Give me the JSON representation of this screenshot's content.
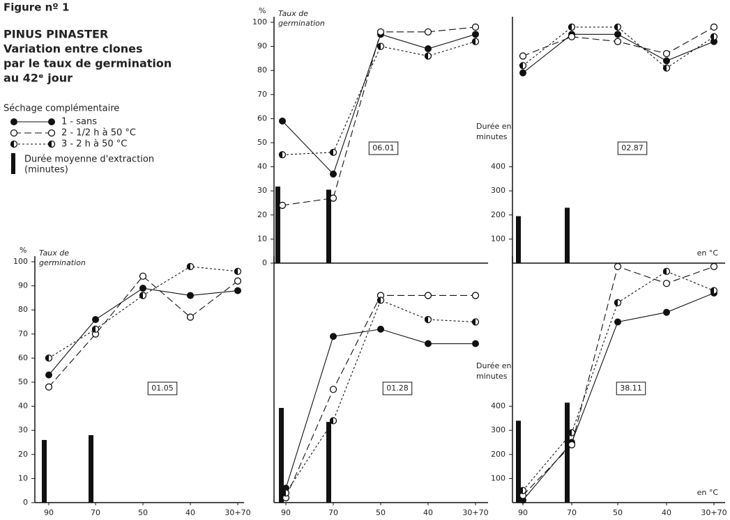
{
  "figure": {
    "title": "Figure nº 1",
    "subtitle": [
      "PINUS PINASTER",
      "Variation entre clones",
      "par le taux de germination",
      "au 42ᵉ jour"
    ]
  },
  "legend": {
    "title": "Séchage complémentaire",
    "entries": [
      "1 - sans",
      "2 - 1/2 h à 50 °C",
      "3 - 2 h à 50 °C"
    ],
    "bar_label": [
      "Durée moyenne d'extraction",
      "(minutes)"
    ]
  },
  "chart_data": [
    {
      "type": "line",
      "label": "06.01",
      "categories": [
        null,
        null,
        null,
        null,
        null
      ],
      "ylim": [
        0,
        100
      ],
      "yticks": [
        0,
        10,
        20,
        30,
        40,
        50,
        60,
        70,
        80,
        90,
        100
      ],
      "yunit": "%",
      "ylabel": [
        "Taux de",
        "germination"
      ],
      "y2lim": [
        0,
        1000
      ],
      "series": [
        {
          "marker": "filled",
          "values": [
            59,
            37,
            95,
            89,
            95
          ]
        },
        {
          "marker": "open",
          "values": [
            24,
            27,
            96,
            96,
            98
          ]
        },
        {
          "marker": "half",
          "values": [
            45,
            46,
            90,
            86,
            92
          ]
        }
      ],
      "bars": [
        318,
        305
      ]
    },
    {
      "type": "line",
      "label": "02.87",
      "categories": [
        null,
        null,
        null,
        null,
        null
      ],
      "ylim": [
        0,
        100
      ],
      "y2lim": [
        0,
        1000
      ],
      "y2ticks": [
        100,
        200,
        300,
        400
      ],
      "y2label": [
        "Durée en",
        "minutes"
      ],
      "xlabel": "en °C",
      "series": [
        {
          "marker": "filled",
          "values": [
            79,
            95,
            95,
            84,
            92
          ]
        },
        {
          "marker": "open",
          "values": [
            86,
            94,
            92,
            87,
            98
          ]
        },
        {
          "marker": "half",
          "values": [
            82,
            98,
            98,
            81,
            94
          ]
        }
      ],
      "bars": [
        195,
        230
      ]
    },
    {
      "type": "line",
      "label": "01.05",
      "categories": [
        "90",
        "70",
        "50",
        "40",
        "30+70"
      ],
      "ylim": [
        0,
        100
      ],
      "yticks": [
        0,
        10,
        20,
        30,
        40,
        50,
        60,
        70,
        80,
        90,
        100
      ],
      "yunit": "%",
      "ylabel": [
        "Taux de",
        "germination"
      ],
      "y2lim": [
        0,
        1000
      ],
      "series": [
        {
          "marker": "filled",
          "values": [
            53,
            76,
            89,
            86,
            88
          ]
        },
        {
          "marker": "open",
          "values": [
            48,
            70,
            94,
            77,
            92
          ]
        },
        {
          "marker": "half",
          "values": [
            60,
            72,
            86,
            98,
            96
          ]
        }
      ],
      "bars": [
        260,
        280
      ]
    },
    {
      "type": "line",
      "label": "01.28",
      "categories": [
        "90",
        "70",
        "50",
        "40",
        "30+70"
      ],
      "ylim": [
        0,
        100
      ],
      "y2lim": [
        0,
        1000
      ],
      "series": [
        {
          "marker": "filled",
          "values": [
            6,
            69,
            72,
            66,
            66
          ]
        },
        {
          "marker": "open",
          "values": [
            2,
            47,
            86,
            86,
            86
          ]
        },
        {
          "marker": "half",
          "values": [
            4,
            34,
            84,
            76,
            75
          ]
        }
      ],
      "bars": [
        393,
        335
      ]
    },
    {
      "type": "line",
      "label": "38.11",
      "categories": [
        "90",
        "70",
        "50",
        "40",
        "30+70"
      ],
      "ylim": [
        0,
        100
      ],
      "y2lim": [
        0,
        1000
      ],
      "y2ticks": [
        100,
        200,
        300,
        400
      ],
      "y2label": [
        "Durée en",
        "minutes"
      ],
      "xlabel": "en °C",
      "series": [
        {
          "marker": "filled",
          "values": [
            1,
            25,
            75,
            79,
            87
          ]
        },
        {
          "marker": "open",
          "values": [
            3,
            24,
            98,
            91,
            98
          ]
        },
        {
          "marker": "half",
          "values": [
            5,
            29,
            83,
            96,
            88
          ]
        }
      ],
      "bars": [
        340,
        415
      ]
    }
  ]
}
